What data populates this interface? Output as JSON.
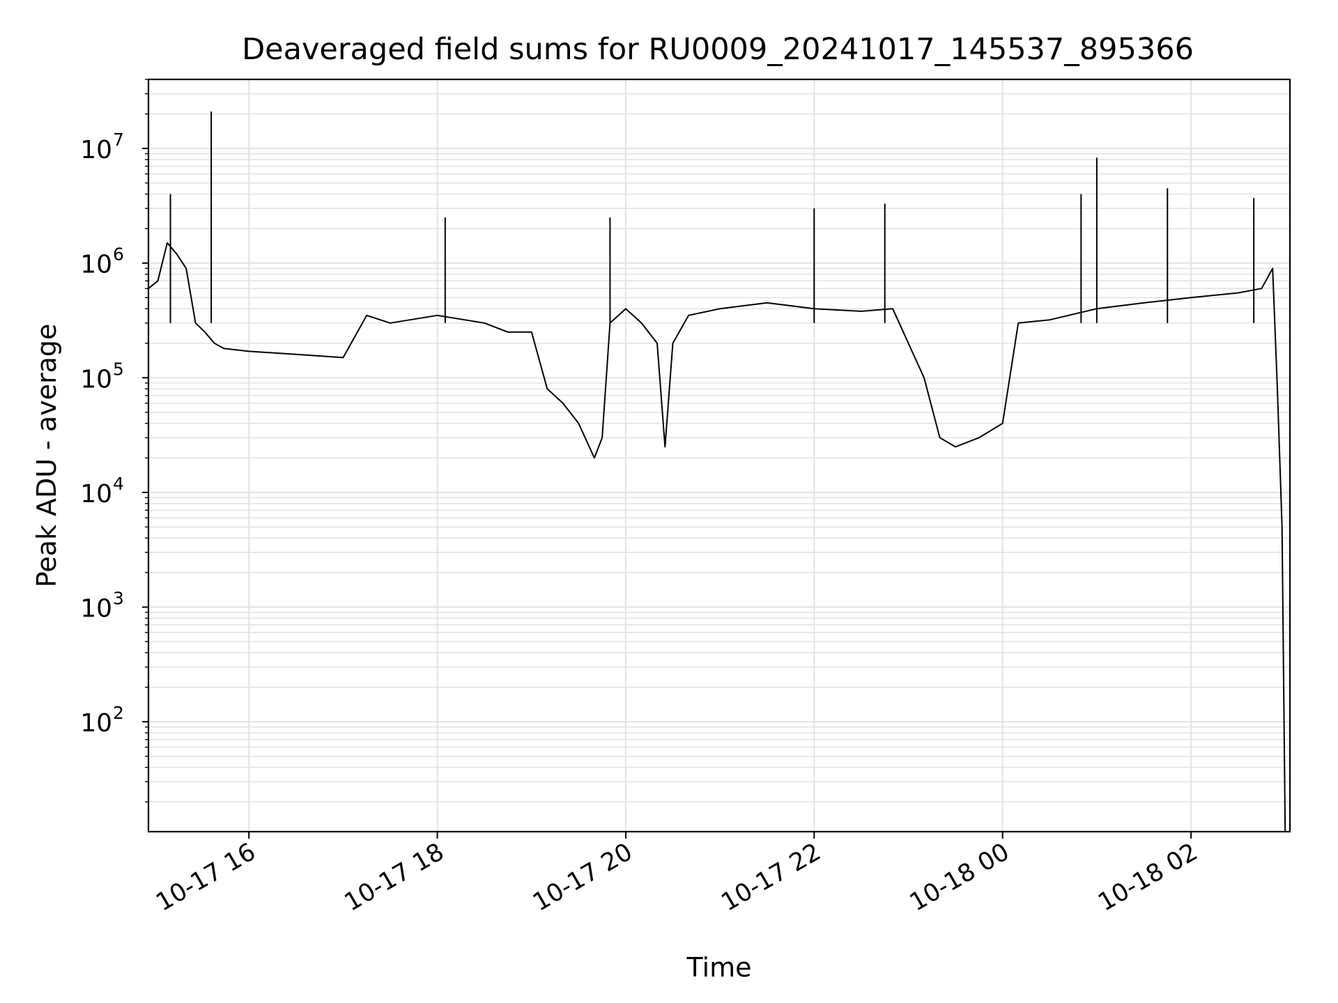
{
  "chart_data": {
    "type": "line",
    "title": "Deaveraged field sums for RU0009_20241017_145537_895366",
    "xlabel": "Time",
    "ylabel": "Peak ADU - average",
    "y_scale": "log",
    "ylim": [
      11,
      40000000
    ],
    "xlim": [
      "2024-10-17 14:56",
      "2024-10-18 03:03"
    ],
    "grid": true,
    "line_color": "#000000",
    "grid_color": "#e3e3e3",
    "x_tick_values": [
      "2024-10-17 16:00",
      "2024-10-17 18:00",
      "2024-10-17 20:00",
      "2024-10-17 22:00",
      "2024-10-18 00:00",
      "2024-10-18 02:00"
    ],
    "x_tick_labels": [
      "10-17 16",
      "10-17 18",
      "10-17 20",
      "10-17 22",
      "10-18 00",
      "10-18 02"
    ],
    "y_tick_values": [
      100,
      1000,
      10000,
      100000,
      1000000,
      10000000
    ],
    "y_tick_labels": [
      {
        "base": "10",
        "exp": "2"
      },
      {
        "base": "10",
        "exp": "3"
      },
      {
        "base": "10",
        "exp": "4"
      },
      {
        "base": "10",
        "exp": "5"
      },
      {
        "base": "10",
        "exp": "6"
      },
      {
        "base": "10",
        "exp": "7"
      }
    ],
    "series": [
      {
        "x": [
          "2024-10-17 14:56",
          "2024-10-17 15:02",
          "2024-10-17 15:08",
          "2024-10-17 15:14",
          "2024-10-17 15:20",
          "2024-10-17 15:26",
          "2024-10-17 15:32",
          "2024-10-17 15:38",
          "2024-10-17 15:44",
          "2024-10-17 16:00",
          "2024-10-17 16:30",
          "2024-10-17 17:00",
          "2024-10-17 17:15",
          "2024-10-17 17:30",
          "2024-10-17 18:00",
          "2024-10-17 18:30",
          "2024-10-17 18:45",
          "2024-10-17 19:00",
          "2024-10-17 19:10",
          "2024-10-17 19:20",
          "2024-10-17 19:30",
          "2024-10-17 19:40",
          "2024-10-17 19:45",
          "2024-10-17 19:50",
          "2024-10-17 20:00",
          "2024-10-17 20:10",
          "2024-10-17 20:20",
          "2024-10-17 20:25",
          "2024-10-17 20:30",
          "2024-10-17 20:40",
          "2024-10-17 21:00",
          "2024-10-17 21:30",
          "2024-10-17 22:00",
          "2024-10-17 22:30",
          "2024-10-17 22:50",
          "2024-10-17 23:00",
          "2024-10-17 23:10",
          "2024-10-17 23:20",
          "2024-10-17 23:30",
          "2024-10-17 23:45",
          "2024-10-18 00:00",
          "2024-10-18 00:10",
          "2024-10-18 00:30",
          "2024-10-18 01:00",
          "2024-10-18 01:30",
          "2024-10-18 02:00",
          "2024-10-18 02:30",
          "2024-10-18 02:45",
          "2024-10-18 02:52",
          "2024-10-18 02:55",
          "2024-10-18 02:58",
          "2024-10-18 03:00"
        ],
        "y": [
          600000,
          700000,
          1500000,
          1200000,
          900000,
          300000,
          250000,
          200000,
          180000,
          170000,
          160000,
          150000,
          350000,
          300000,
          350000,
          300000,
          250000,
          250000,
          80000,
          60000,
          40000,
          20000,
          30000,
          300000,
          400000,
          300000,
          200000,
          25000,
          200000,
          350000,
          400000,
          450000,
          400000,
          380000,
          400000,
          200000,
          100000,
          30000,
          25000,
          30000,
          40000,
          300000,
          320000,
          400000,
          450000,
          500000,
          550000,
          600000,
          900000,
          80000,
          5000,
          11
        ]
      }
    ],
    "spikes": {
      "x": [
        "2024-10-17 15:36",
        "2024-10-17 15:10",
        "2024-10-17 18:05",
        "2024-10-17 19:50",
        "2024-10-17 22:00",
        "2024-10-17 22:45",
        "2024-10-18 00:50",
        "2024-10-18 01:00",
        "2024-10-18 01:45",
        "2024-10-18 02:40"
      ],
      "y": [
        21000000,
        4000000,
        2500000,
        2500000,
        3000000,
        3300000,
        4000000,
        8300000,
        4500000,
        3700000
      ]
    }
  }
}
